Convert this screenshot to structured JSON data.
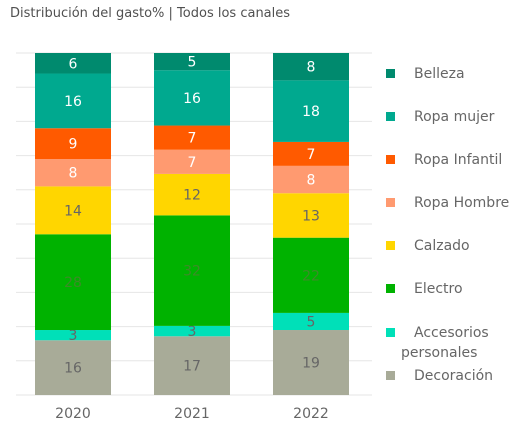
{
  "chart_data": {
    "type": "bar",
    "stacked": true,
    "title": "Distribución del gasto% | Todos los canales",
    "categories": [
      "2020",
      "2021",
      "2022"
    ],
    "series": [
      {
        "name": "Decoración",
        "values": [
          16,
          17,
          19
        ],
        "color": "#a8ab98",
        "label_color": "#666666"
      },
      {
        "name": "Accesorios personales",
        "values": [
          3,
          3,
          5
        ],
        "color": "#00e0b8",
        "label_color": "#666666"
      },
      {
        "name": "Electro",
        "values": [
          28,
          32,
          22
        ],
        "color": "#00b200",
        "label_color": "#3c8c28"
      },
      {
        "name": "Calzado",
        "values": [
          14,
          12,
          13
        ],
        "color": "#ffd600",
        "label_color": "#666666"
      },
      {
        "name": "Ropa Hombre",
        "values": [
          8,
          7,
          8
        ],
        "color": "#ff9a70",
        "label_color": "#ffffff"
      },
      {
        "name": "Ropa Infantil",
        "values": [
          9,
          7,
          7
        ],
        "color": "#ff5a00",
        "label_color": "#ffffff"
      },
      {
        "name": "Ropa mujer",
        "values": [
          16,
          16,
          18
        ],
        "color": "#00a98f",
        "label_color": "#ffffff"
      },
      {
        "name": "Belleza",
        "values": [
          6,
          5,
          8
        ],
        "color": "#008a6e",
        "label_color": "#ffffff"
      }
    ],
    "legend_order": [
      "Belleza",
      "Ropa mujer",
      "Ropa Infantil",
      "Ropa Hombre",
      "Calzado",
      "Electro",
      "Accesorios personales",
      "Decoración"
    ],
    "legend_lines": {
      "Accesorios personales": [
        "Accesorios",
        "personales"
      ]
    },
    "legend_position": "right",
    "grid": true,
    "grid_color": "#e6e6e6"
  }
}
